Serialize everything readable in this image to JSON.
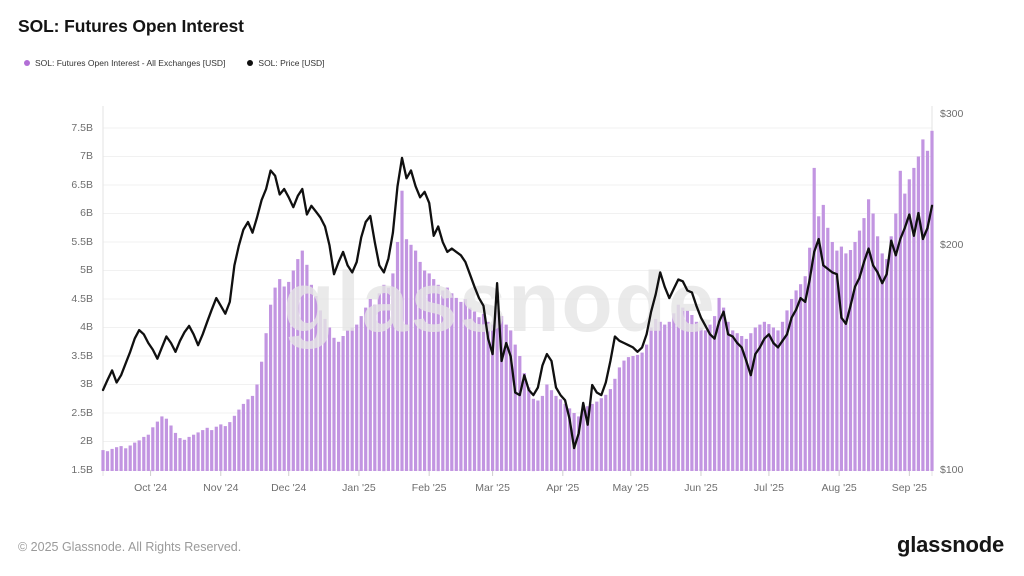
{
  "header": {
    "title": "SOL: Futures Open Interest"
  },
  "legend": [
    {
      "label": "SOL: Futures Open Interest - All Exchanges [USD]",
      "color": "#b26fd6",
      "type": "bar"
    },
    {
      "label": "SOL: Price [USD]",
      "color": "#101010",
      "type": "line"
    }
  ],
  "watermark": {
    "text": "glassnode"
  },
  "footer": {
    "copyright": "© 2025 Glassnode. All Rights Reserved.",
    "logo": "glassnode"
  },
  "colors": {
    "bar": "#c295e1",
    "line": "#101010",
    "grid": "#f1f1f1",
    "axis_line": "#e3e3e3",
    "tick_mark": "#cfcfcf",
    "tick_text": "#6e6e6e"
  },
  "chart_data": {
    "type": "combo",
    "title": "SOL: Futures Open Interest",
    "x_start": "2024-09-10",
    "x_end": "2025-09-11",
    "x_step_days": 2,
    "x_ticks": [
      {
        "day": 21,
        "label": "Oct '24"
      },
      {
        "day": 52,
        "label": "Nov '24"
      },
      {
        "day": 82,
        "label": "Dec '24"
      },
      {
        "day": 113,
        "label": "Jan '25"
      },
      {
        "day": 144,
        "label": "Feb '25"
      },
      {
        "day": 172,
        "label": "Mar '25"
      },
      {
        "day": 203,
        "label": "Apr '25"
      },
      {
        "day": 233,
        "label": "May '25"
      },
      {
        "day": 264,
        "label": "Jun '25"
      },
      {
        "day": 294,
        "label": "Jul '25"
      },
      {
        "day": 325,
        "label": "Aug '25"
      },
      {
        "day": 356,
        "label": "Sep '25"
      }
    ],
    "left_axis": {
      "unit": "USD billions",
      "scale": "linear",
      "min": 1.5,
      "max": 7.5,
      "grid": true,
      "ticks": [
        {
          "v": 7.5,
          "label": "7.5B"
        },
        {
          "v": 7.0,
          "label": "7B"
        },
        {
          "v": 6.5,
          "label": "6.5B"
        },
        {
          "v": 6.0,
          "label": "6B"
        },
        {
          "v": 5.5,
          "label": "5.5B"
        },
        {
          "v": 5.0,
          "label": "5B"
        },
        {
          "v": 4.5,
          "label": "4.5B"
        },
        {
          "v": 4.0,
          "label": "4B"
        },
        {
          "v": 3.5,
          "label": "3.5B"
        },
        {
          "v": 3.0,
          "label": "3B"
        },
        {
          "v": 2.5,
          "label": "2.5B"
        },
        {
          "v": 2.0,
          "label": "2B"
        },
        {
          "v": 1.5,
          "label": "1.5B"
        }
      ]
    },
    "right_axis": {
      "unit": "USD",
      "scale": "log",
      "min": 100,
      "max": 300,
      "ticks": [
        {
          "v": 300,
          "label": "$300"
        },
        {
          "v": 200,
          "label": "$200"
        },
        {
          "v": 100,
          "label": "$100"
        }
      ]
    },
    "series": [
      {
        "name": "SOL: Futures Open Interest - All Exchanges [USD]",
        "type": "bar",
        "axis": "left",
        "unit": "billions USD",
        "values": [
          1.85,
          1.83,
          1.87,
          1.9,
          1.92,
          1.88,
          1.93,
          1.98,
          2.02,
          2.08,
          2.12,
          2.25,
          2.35,
          2.44,
          2.4,
          2.28,
          2.15,
          2.06,
          2.03,
          2.08,
          2.12,
          2.16,
          2.2,
          2.24,
          2.2,
          2.26,
          2.3,
          2.27,
          2.34,
          2.45,
          2.56,
          2.66,
          2.74,
          2.8,
          3.0,
          3.4,
          3.9,
          4.4,
          4.7,
          4.85,
          4.72,
          4.8,
          5.0,
          5.2,
          5.35,
          5.1,
          4.75,
          4.55,
          4.3,
          4.15,
          4.0,
          3.82,
          3.75,
          3.85,
          3.95,
          4.0,
          4.05,
          4.2,
          4.35,
          4.5,
          4.4,
          4.6,
          4.75,
          4.7,
          4.95,
          5.5,
          6.4,
          5.55,
          5.45,
          5.35,
          5.15,
          5.0,
          4.95,
          4.85,
          4.75,
          4.65,
          4.7,
          4.6,
          4.52,
          4.45,
          4.5,
          4.35,
          4.28,
          4.18,
          4.24,
          4.1,
          4.05,
          4.3,
          4.2,
          4.05,
          3.95,
          3.7,
          3.5,
          3.2,
          2.95,
          2.75,
          2.72,
          2.8,
          3.0,
          2.9,
          2.8,
          2.74,
          2.66,
          2.58,
          2.5,
          2.44,
          2.56,
          2.62,
          2.66,
          2.7,
          2.76,
          2.82,
          2.92,
          3.1,
          3.3,
          3.42,
          3.48,
          3.5,
          3.52,
          3.56,
          3.7,
          4.0,
          4.15,
          4.1,
          4.05,
          4.1,
          4.25,
          4.4,
          4.35,
          4.3,
          4.22,
          4.1,
          4.0,
          3.95,
          4.05,
          4.2,
          4.52,
          4.35,
          4.1,
          3.95,
          3.9,
          3.85,
          3.8,
          3.9,
          4.0,
          4.05,
          4.1,
          4.06,
          4.0,
          3.95,
          4.1,
          4.3,
          4.5,
          4.65,
          4.76,
          4.9,
          5.4,
          6.8,
          5.95,
          6.15,
          5.75,
          5.5,
          5.35,
          5.42,
          5.3,
          5.36,
          5.5,
          5.7,
          5.92,
          6.25,
          6.0,
          5.6,
          5.3,
          5.2,
          5.6,
          6.0,
          6.75,
          6.35,
          6.6,
          6.8,
          7.0,
          7.3,
          7.1,
          7.45
        ]
      },
      {
        "name": "SOL: Price [USD]",
        "type": "line",
        "axis": "right",
        "unit": "USD",
        "values": [
          128,
          132,
          136,
          131,
          134,
          139,
          144,
          150,
          154,
          152,
          148,
          145,
          141,
          146,
          151,
          148,
          144,
          149,
          153,
          156,
          152,
          147,
          152,
          158,
          164,
          170,
          166,
          162,
          168,
          188,
          200,
          210,
          215,
          208,
          218,
          230,
          238,
          252,
          248,
          234,
          238,
          232,
          225,
          233,
          238,
          220,
          226,
          222,
          218,
          212,
          200,
          183,
          190,
          196,
          188,
          184,
          190,
          205,
          215,
          219,
          202,
          188,
          184,
          192,
          208,
          240,
          262,
          246,
          252,
          240,
          232,
          236,
          228,
          206,
          212,
          202,
          196,
          198,
          196,
          194,
          190,
          183,
          176,
          170,
          166,
          150,
          143,
          178,
          140,
          148,
          142,
          127,
          126,
          134,
          128,
          126,
          129,
          138,
          143,
          140,
          129,
          126,
          124,
          117,
          107,
          112,
          123,
          115,
          130,
          127,
          126,
          131,
          140,
          151,
          149,
          148,
          147,
          146,
          144,
          146,
          152,
          163,
          172,
          184,
          176,
          170,
          175,
          180,
          179,
          174,
          173,
          166,
          160,
          156,
          152,
          150,
          158,
          163,
          152,
          151,
          148,
          146,
          140,
          134,
          143,
          146,
          150,
          152,
          148,
          146,
          149,
          152,
          160,
          164,
          170,
          168,
          180,
          196,
          204,
          188,
          186,
          184,
          183,
          160,
          157,
          166,
          176,
          181,
          190,
          198,
          188,
          184,
          178,
          183,
          203,
          194,
          204,
          211,
          220,
          206,
          221,
          204,
          211,
          226
        ]
      }
    ]
  }
}
